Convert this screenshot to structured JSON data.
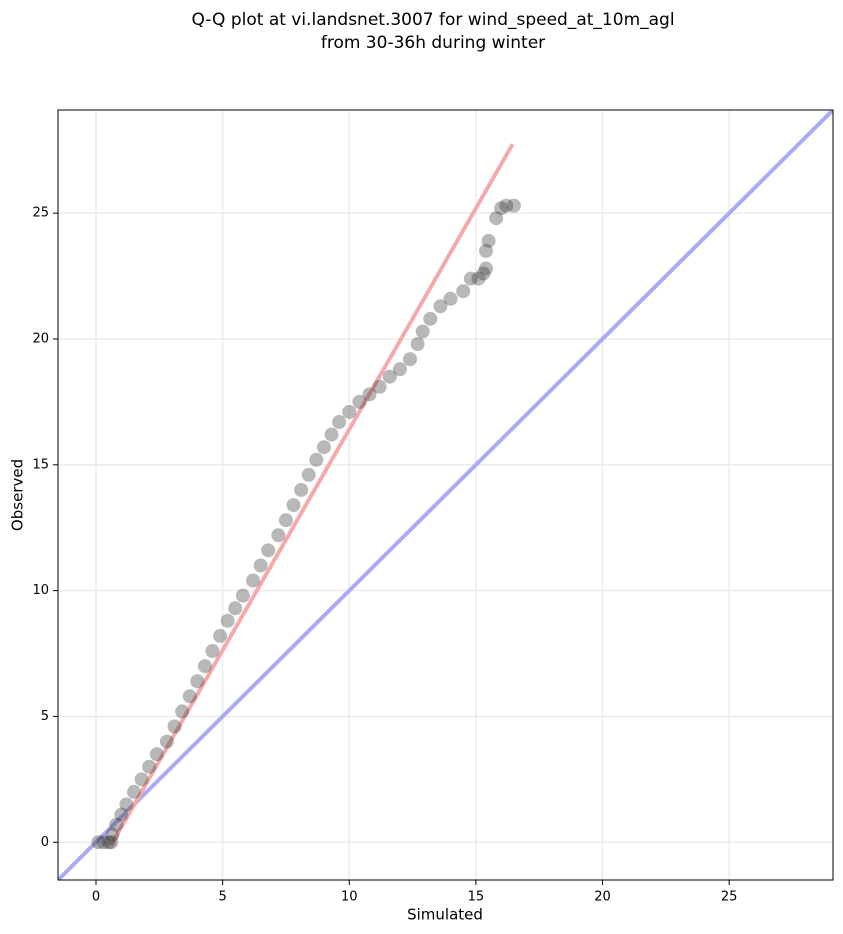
{
  "chart_data": {
    "type": "scatter",
    "title": [
      "Q-Q plot at vi.landsnet.3007 for wind_speed_at_10m_agl",
      "from 30-36h during winter"
    ],
    "xlabel": "Simulated",
    "ylabel": "Observed",
    "xlim": [
      -1.5,
      29.1
    ],
    "ylim": [
      -1.5,
      29.1
    ],
    "xticks": [
      0,
      5,
      10,
      15,
      20,
      25
    ],
    "yticks": [
      0,
      5,
      10,
      15,
      20,
      25
    ],
    "grid": true,
    "color": "#333333",
    "x": [
      0.1,
      0.3,
      0.5,
      0.6,
      0.65,
      0.8,
      1.0,
      1.2,
      1.5,
      1.8,
      2.1,
      2.4,
      2.8,
      3.1,
      3.4,
      3.7,
      4.0,
      4.3,
      4.6,
      4.9,
      5.2,
      5.5,
      5.8,
      6.2,
      6.5,
      6.8,
      7.2,
      7.5,
      7.8,
      8.1,
      8.4,
      8.7,
      9.0,
      9.3,
      9.6,
      10.0,
      10.4,
      10.8,
      11.2,
      11.6,
      12.0,
      12.4,
      12.7,
      12.9,
      13.2,
      13.6,
      14.0,
      14.5,
      14.8,
      15.1,
      15.3,
      15.4,
      15.4,
      15.5,
      15.8,
      16.0,
      16.2,
      16.5
    ],
    "values": [
      0.0,
      0.0,
      0.0,
      0.0,
      0.3,
      0.7,
      1.1,
      1.5,
      2.0,
      2.5,
      3.0,
      3.5,
      4.0,
      4.6,
      5.2,
      5.8,
      6.4,
      7.0,
      7.6,
      8.2,
      8.8,
      9.3,
      9.8,
      10.4,
      11.0,
      11.6,
      12.2,
      12.8,
      13.4,
      14.0,
      14.6,
      15.2,
      15.7,
      16.2,
      16.7,
      17.1,
      17.5,
      17.8,
      18.1,
      18.5,
      18.8,
      19.2,
      19.8,
      20.3,
      20.8,
      21.3,
      21.6,
      21.9,
      22.4,
      22.4,
      22.6,
      22.8,
      23.5,
      23.9,
      24.8,
      25.2,
      25.3,
      25.3
    ],
    "lines": [
      {
        "color": "#aaaaf5",
        "x": [
          -1.5,
          29.1
        ],
        "values": [
          -1.5,
          29.1
        ]
      },
      {
        "color": "#f5aaaa",
        "x": [
          0.6,
          16.45
        ],
        "values": [
          -0.1,
          27.74
        ]
      }
    ]
  }
}
